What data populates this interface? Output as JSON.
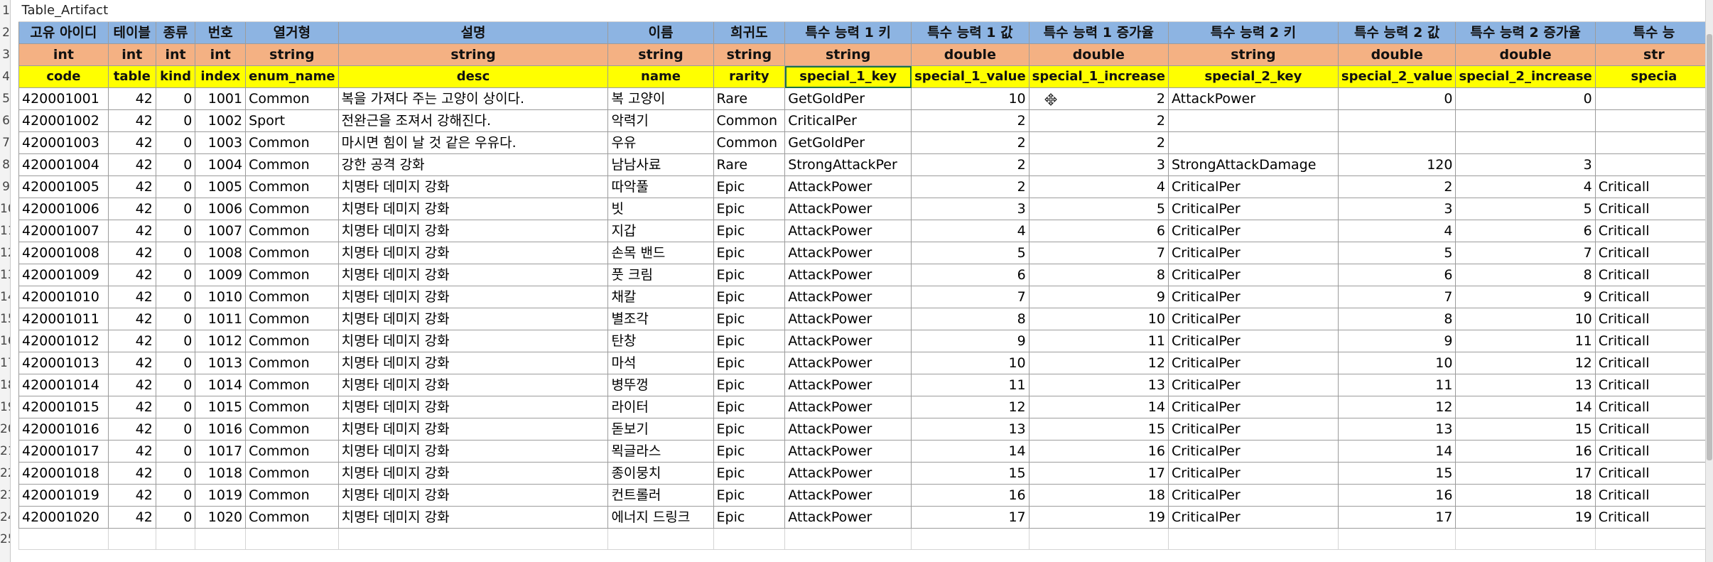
{
  "sheet": {
    "title": "Table_Artifact",
    "row_numbers": [
      "1",
      "2",
      "3",
      "4",
      "5",
      "6",
      "7",
      "8",
      "9",
      "10",
      "11",
      "12",
      "13",
      "14",
      "15",
      "16",
      "17",
      "18",
      "19",
      "20",
      "21",
      "22",
      "23",
      "24",
      "25"
    ],
    "header_kr": [
      "고유 아이디",
      "테이블",
      "종류",
      "번호",
      "열거형",
      "설명",
      "이름",
      "희귀도",
      "특수 능력 1 키",
      "특수 능력 1 값",
      "특수 능력 1 증가율",
      "특수 능력 2 키",
      "특수 능력 2 값",
      "특수 능력 2 증가율",
      "특수 능"
    ],
    "header_type": [
      "int",
      "int",
      "int",
      "int",
      "string",
      "string",
      "string",
      "string",
      "string",
      "double",
      "double",
      "string",
      "double",
      "double",
      "str"
    ],
    "header_field": [
      "code",
      "table",
      "kind",
      "index",
      "enum_name",
      "desc",
      "name",
      "rarity",
      "special_1_key",
      "special_1_value",
      "special_1_increase",
      "special_2_key",
      "special_2_value",
      "special_2_increase",
      "specia"
    ],
    "rows": [
      [
        "420001001",
        "42",
        "0",
        "1001",
        "Common",
        "복을 가져다 주는 고양이 상이다.",
        "복 고양이",
        "Rare",
        "GetGoldPer",
        "10",
        "2",
        "AttackPower",
        "0",
        "0",
        ""
      ],
      [
        "420001002",
        "42",
        "0",
        "1002",
        "Sport",
        "전완근을 조져서 강해진다.",
        "악력기",
        "Common",
        "CriticalPer",
        "2",
        "2",
        "",
        "",
        "",
        ""
      ],
      [
        "420001003",
        "42",
        "0",
        "1003",
        "Common",
        "마시면 힘이 날 것 같은 우유다.",
        "우유",
        "Common",
        "GetGoldPer",
        "2",
        "2",
        "",
        "",
        "",
        ""
      ],
      [
        "420001004",
        "42",
        "0",
        "1004",
        "Common",
        "강한 공격 강화",
        "남남사료",
        "Rare",
        "StrongAttackPer",
        "2",
        "3",
        "StrongAttackDamage",
        "120",
        "3",
        ""
      ],
      [
        "420001005",
        "42",
        "0",
        "1005",
        "Common",
        "치명타 데미지 강화",
        "따악풀",
        "Epic",
        "AttackPower",
        "2",
        "4",
        "CriticalPer",
        "2",
        "4",
        "Criticall"
      ],
      [
        "420001006",
        "42",
        "0",
        "1006",
        "Common",
        "치명타 데미지 강화",
        "빗",
        "Epic",
        "AttackPower",
        "3",
        "5",
        "CriticalPer",
        "3",
        "5",
        "Criticall"
      ],
      [
        "420001007",
        "42",
        "0",
        "1007",
        "Common",
        "치명타 데미지 강화",
        "지갑",
        "Epic",
        "AttackPower",
        "4",
        "6",
        "CriticalPer",
        "4",
        "6",
        "Criticall"
      ],
      [
        "420001008",
        "42",
        "0",
        "1008",
        "Common",
        "치명타 데미지 강화",
        "손목 밴드",
        "Epic",
        "AttackPower",
        "5",
        "7",
        "CriticalPer",
        "5",
        "7",
        "Criticall"
      ],
      [
        "420001009",
        "42",
        "0",
        "1009",
        "Common",
        "치명타 데미지 강화",
        "풋 크림",
        "Epic",
        "AttackPower",
        "6",
        "8",
        "CriticalPer",
        "6",
        "8",
        "Criticall"
      ],
      [
        "420001010",
        "42",
        "0",
        "1010",
        "Common",
        "치명타 데미지 강화",
        "채칼",
        "Epic",
        "AttackPower",
        "7",
        "9",
        "CriticalPer",
        "7",
        "9",
        "Criticall"
      ],
      [
        "420001011",
        "42",
        "0",
        "1011",
        "Common",
        "치명타 데미지 강화",
        "별조각",
        "Epic",
        "AttackPower",
        "8",
        "10",
        "CriticalPer",
        "8",
        "10",
        "Criticall"
      ],
      [
        "420001012",
        "42",
        "0",
        "1012",
        "Common",
        "치명타 데미지 강화",
        "탄창",
        "Epic",
        "AttackPower",
        "9",
        "11",
        "CriticalPer",
        "9",
        "11",
        "Criticall"
      ],
      [
        "420001013",
        "42",
        "0",
        "1013",
        "Common",
        "치명타 데미지 강화",
        "마석",
        "Epic",
        "AttackPower",
        "10",
        "12",
        "CriticalPer",
        "10",
        "12",
        "Criticall"
      ],
      [
        "420001014",
        "42",
        "0",
        "1014",
        "Common",
        "치명타 데미지 강화",
        "병뚜껑",
        "Epic",
        "AttackPower",
        "11",
        "13",
        "CriticalPer",
        "11",
        "13",
        "Criticall"
      ],
      [
        "420001015",
        "42",
        "0",
        "1015",
        "Common",
        "치명타 데미지 강화",
        "라이터",
        "Epic",
        "AttackPower",
        "12",
        "14",
        "CriticalPer",
        "12",
        "14",
        "Criticall"
      ],
      [
        "420001016",
        "42",
        "0",
        "1016",
        "Common",
        "치명타 데미지 강화",
        "돋보기",
        "Epic",
        "AttackPower",
        "13",
        "15",
        "CriticalPer",
        "13",
        "15",
        "Criticall"
      ],
      [
        "420001017",
        "42",
        "0",
        "1017",
        "Common",
        "치명타 데미지 강화",
        "뫽글라스",
        "Epic",
        "AttackPower",
        "14",
        "16",
        "CriticalPer",
        "14",
        "16",
        "Criticall"
      ],
      [
        "420001018",
        "42",
        "0",
        "1018",
        "Common",
        "치명타 데미지 강화",
        "종이뭉치",
        "Epic",
        "AttackPower",
        "15",
        "17",
        "CriticalPer",
        "15",
        "17",
        "Criticall"
      ],
      [
        "420001019",
        "42",
        "0",
        "1019",
        "Common",
        "치명타 데미지 강화",
        "컨트롤러",
        "Epic",
        "AttackPower",
        "16",
        "18",
        "CriticalPer",
        "16",
        "18",
        "Criticall"
      ],
      [
        "420001020",
        "42",
        "0",
        "1020",
        "Common",
        "치명타 데미지 강화",
        "에너지 드링크",
        "Epic",
        "AttackPower",
        "17",
        "19",
        "CriticalPer",
        "17",
        "19",
        "Criticall"
      ]
    ]
  },
  "colors": {
    "header_kr": "#8db4e2",
    "header_type": "#f4b183",
    "header_field": "#ffff00",
    "selection": "#1e7145"
  },
  "icons": {
    "pointer": "move-cursor-icon"
  }
}
